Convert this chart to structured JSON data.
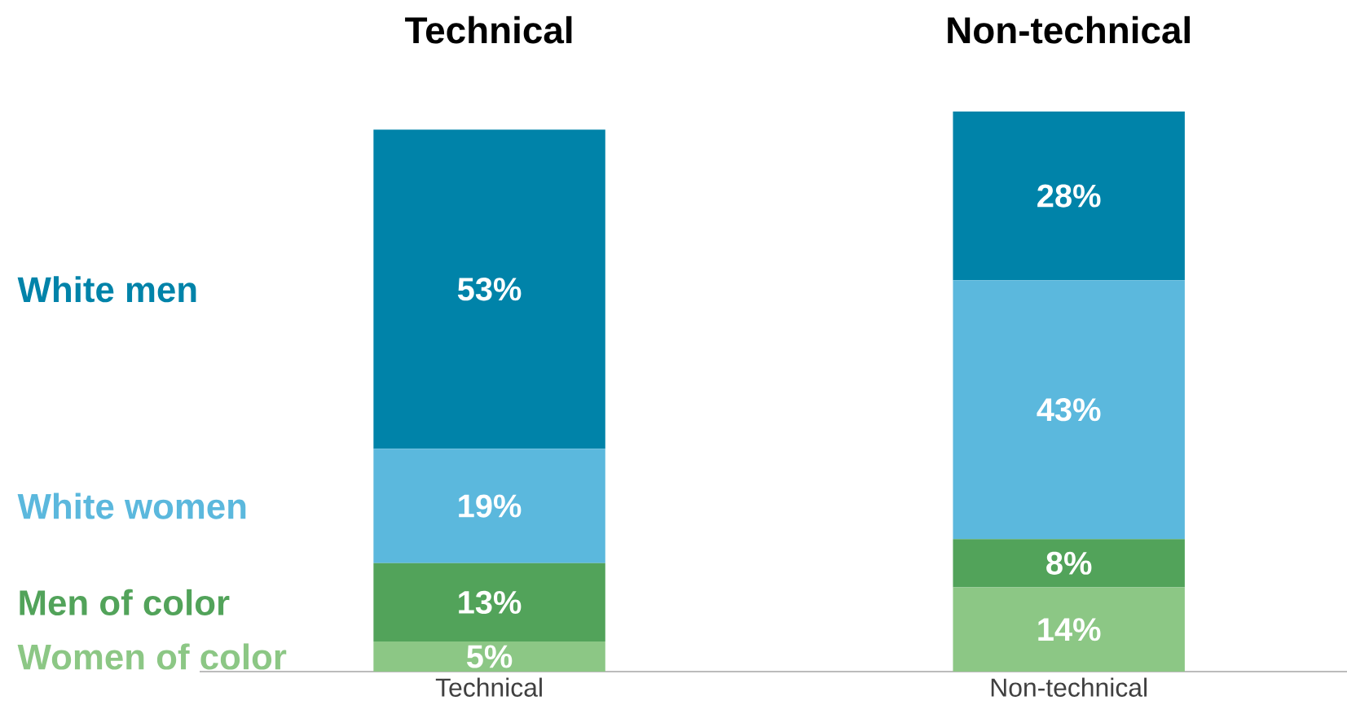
{
  "chart_data": {
    "type": "bar",
    "stacked": true,
    "legend": "left",
    "categories": [
      "Technical",
      "Non-technical"
    ],
    "annotations": [
      "Technical",
      "Non-technical"
    ],
    "series": [
      {
        "name": "Women of color",
        "color": "#8cc785",
        "values": [
          5,
          14
        ],
        "value_labels": [
          "5%",
          "14%"
        ]
      },
      {
        "name": "Men of color",
        "color": "#52a35a",
        "values": [
          13,
          8
        ],
        "value_labels": [
          "13%",
          "8%"
        ]
      },
      {
        "name": "White women",
        "color": "#5bb8dd",
        "values": [
          19,
          43
        ],
        "value_labels": [
          "19%",
          "43%"
        ]
      },
      {
        "name": "White men",
        "color": "#0083a9",
        "values": [
          53,
          28
        ],
        "value_labels": [
          "53%",
          "28%"
        ]
      }
    ]
  }
}
